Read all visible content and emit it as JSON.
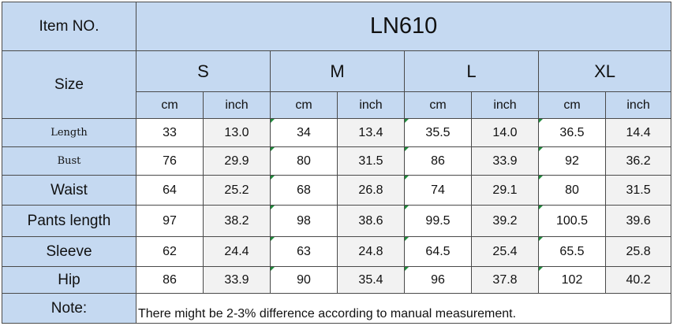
{
  "header": {
    "item_label": "Item NO.",
    "model": "LN610",
    "size_label": "Size",
    "sizes": [
      "S",
      "M",
      "L",
      "XL"
    ],
    "unit_cm": "cm",
    "unit_inch": "inch"
  },
  "rows": [
    {
      "label": "Length",
      "values": [
        "33",
        "13.0",
        "34",
        "13.4",
        "35.5",
        "14.0",
        "36.5",
        "14.4"
      ]
    },
    {
      "label": "Bust",
      "values": [
        "76",
        "29.9",
        "80",
        "31.5",
        "86",
        "33.9",
        "92",
        "36.2"
      ]
    },
    {
      "label": "Waist",
      "values": [
        "64",
        "25.2",
        "68",
        "26.8",
        "74",
        "29.1",
        "80",
        "31.5"
      ]
    },
    {
      "label": "Pants length",
      "values": [
        "97",
        "38.2",
        "98",
        "38.6",
        "99.5",
        "39.2",
        "100.5",
        "39.6"
      ]
    },
    {
      "label": "Sleeve",
      "values": [
        "62",
        "24.4",
        "63",
        "24.8",
        "64.5",
        "25.4",
        "65.5",
        "25.8"
      ]
    },
    {
      "label": "Hip",
      "values": [
        "86",
        "33.9",
        "90",
        "35.4",
        "96",
        "37.8",
        "102",
        "40.2"
      ]
    }
  ],
  "note": {
    "label": "Note:",
    "text": "There might be 2-3% difference according to manual measurement."
  },
  "colors": {
    "header_fill": "#c5d9f1",
    "alt_cell_fill": "#f2f2f2",
    "border": "#4a4a4a",
    "cell_marker": "#1e8a3a"
  }
}
